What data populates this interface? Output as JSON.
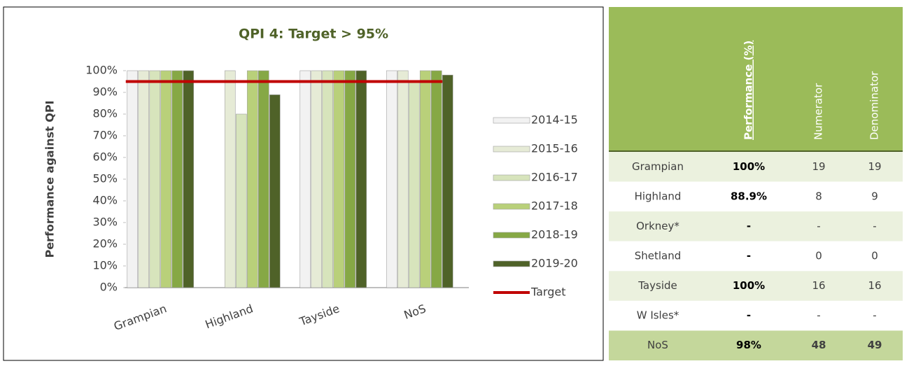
{
  "chart_data": {
    "type": "bar",
    "title": "QPI 4: Target > 95%",
    "y_label": "Performance against QPI",
    "categories": [
      "Grampian",
      "Highland",
      "Tayside",
      "NoS"
    ],
    "series": [
      {
        "name": "2014-15",
        "color": "#f2f2f2",
        "values": [
          100,
          null,
          100,
          100
        ]
      },
      {
        "name": "2015-16",
        "color": "#e6ebd6",
        "values": [
          100,
          100,
          100,
          100
        ]
      },
      {
        "name": "2016-17",
        "color": "#d7e4bc",
        "values": [
          100,
          80,
          100,
          95
        ]
      },
      {
        "name": "2017-18",
        "color": "#b9d07a",
        "values": [
          100,
          100,
          100,
          100
        ]
      },
      {
        "name": "2018-19",
        "color": "#86a845",
        "values": [
          100,
          100,
          100,
          100
        ]
      },
      {
        "name": "2019-20",
        "color": "#4f6228",
        "values": [
          100,
          88.9,
          100,
          98
        ]
      },
      {
        "name": "Target",
        "type": "line",
        "color": "#c00000",
        "values": [
          95,
          95,
          95,
          95
        ]
      }
    ],
    "ylim": [
      0,
      100
    ],
    "yticks": [
      {
        "value": 0,
        "label": "0%"
      },
      {
        "value": 10,
        "label": "10%"
      },
      {
        "value": 20,
        "label": "20%"
      },
      {
        "value": 30,
        "label": "30%"
      },
      {
        "value": 40,
        "label": "40%"
      },
      {
        "value": 50,
        "label": "50%"
      },
      {
        "value": 60,
        "label": "60%"
      },
      {
        "value": 70,
        "label": "70%"
      },
      {
        "value": 80,
        "label": "80%"
      },
      {
        "value": 90,
        "label": "90%"
      },
      {
        "value": 100,
        "label": "100%"
      }
    ],
    "legend": "right"
  },
  "table": {
    "columns": [
      "Performance (%)",
      "Numerator",
      "Denominator"
    ],
    "rows": [
      [
        "Grampian",
        "100%",
        "19",
        "19"
      ],
      [
        "Highland",
        "88.9%",
        "8",
        "9"
      ],
      [
        "Orkney*",
        "-",
        "-",
        "-"
      ],
      [
        "Shetland",
        "-",
        "0",
        "0"
      ],
      [
        "Tayside",
        "100%",
        "16",
        "16"
      ],
      [
        "W Isles*",
        "-",
        "-",
        "-"
      ],
      [
        "NoS",
        "98%",
        "48",
        "49"
      ]
    ]
  }
}
